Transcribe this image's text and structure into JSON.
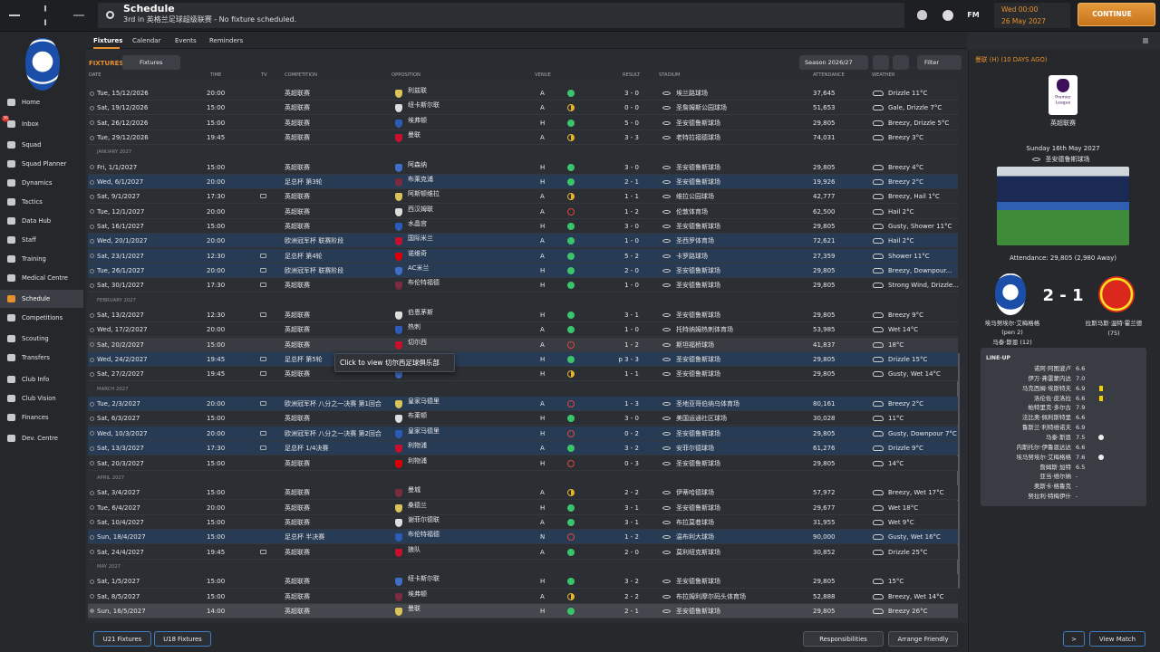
{
  "topbar": {
    "title": "Schedule",
    "subtitle": "3rd in 英格兰足球超级联赛 - No fixture scheduled.",
    "game_logo": "FM",
    "time": "Wed 00:00",
    "date": "26 May 2027",
    "continue": "CONTINUE"
  },
  "sidebar": {
    "active": 10,
    "items": [
      {
        "label": "Home"
      },
      {
        "label": "Inbox",
        "badge": "36"
      },
      {
        "label": "Squad"
      },
      {
        "label": "Squad Planner"
      },
      {
        "label": "Dynamics"
      },
      {
        "label": "Tactics"
      },
      {
        "label": "Data Hub"
      },
      {
        "label": "Staff"
      },
      {
        "label": "Training"
      },
      {
        "label": "Medical Centre"
      },
      {
        "label": "Schedule"
      },
      {
        "label": "Competitions"
      },
      {
        "label": "Scouting"
      },
      {
        "label": "Transfers"
      },
      {
        "label": "Club Info"
      },
      {
        "label": "Club Vision"
      },
      {
        "label": "Finances"
      },
      {
        "label": "Dev. Centre"
      }
    ]
  },
  "tabs": {
    "active": 0,
    "items": [
      "Fixtures",
      "Calendar",
      "Events",
      "Reminders"
    ]
  },
  "toolbar": {
    "section": "FIXTURES",
    "view": "Fixtures",
    "season": "Season 2026/27",
    "filter": "Filter"
  },
  "table": {
    "columns": [
      "DATE",
      "TIME",
      "TV",
      "COMPETITION",
      "OPPOSITION",
      "VENUE",
      "RESULT",
      "STADIUM",
      "ATTENDANCE",
      "WEATHER"
    ],
    "rows": [
      {
        "date": "Tue, 15/12/2026",
        "time": "20:00",
        "competition": "英超联赛",
        "opposition": "利兹联",
        "venue": "A",
        "outcome": "W",
        "result": "3 - 0",
        "stadium": "埃兰路球场",
        "attendance": "37,645",
        "weather": "Drizzle 11°C"
      },
      {
        "date": "Sat, 19/12/2026",
        "time": "15:00",
        "competition": "英超联赛",
        "opposition": "纽卡斯尔联",
        "venue": "A",
        "outcome": "D",
        "result": "0 - 0",
        "stadium": "圣詹姆斯公园球场",
        "attendance": "51,653",
        "weather": "Gale, Drizzle 7°C"
      },
      {
        "date": "Sat, 26/12/2026",
        "time": "15:00",
        "competition": "英超联赛",
        "opposition": "埃弗顿",
        "venue": "H",
        "outcome": "W",
        "result": "5 - 0",
        "stadium": "圣安德鲁斯球场",
        "attendance": "29,805",
        "weather": "Breezy, Drizzle 5°C"
      },
      {
        "date": "Tue, 29/12/2026",
        "time": "19:45",
        "competition": "英超联赛",
        "opposition": "曼联",
        "venue": "A",
        "outcome": "D",
        "result": "3 - 3",
        "stadium": "老特拉福德球场",
        "attendance": "74,031",
        "weather": "Breezy 3°C"
      },
      {
        "month": "JANUARY 2027"
      },
      {
        "date": "Fri, 1/1/2027",
        "time": "15:00",
        "competition": "英超联赛",
        "opposition": "阿森纳",
        "venue": "H",
        "outcome": "W",
        "result": "3 - 0",
        "stadium": "圣安德鲁斯球场",
        "attendance": "29,805",
        "weather": "Breezy 4°C"
      },
      {
        "date": "Wed, 6/1/2027",
        "time": "20:00",
        "competition": "足总杯 第3轮",
        "opposition": "布莱克浦",
        "venue": "H",
        "outcome": "W",
        "result": "2 - 1",
        "stadium": "圣安德鲁斯球场",
        "attendance": "19,926",
        "weather": "Breezy 2°C",
        "highlight": true
      },
      {
        "date": "Sat, 9/1/2027",
        "time": "17:30",
        "tv": true,
        "competition": "英超联赛",
        "opposition": "阿斯顿维拉",
        "venue": "A",
        "outcome": "D",
        "result": "1 - 1",
        "stadium": "维拉公园球场",
        "attendance": "42,777",
        "weather": "Breezy, Hail 1°C"
      },
      {
        "date": "Tue, 12/1/2027",
        "time": "20:00",
        "competition": "英超联赛",
        "opposition": "西汉姆联",
        "venue": "A",
        "outcome": "L",
        "result": "1 - 2",
        "stadium": "伦敦体育场",
        "attendance": "62,500",
        "weather": "Hail 2°C"
      },
      {
        "date": "Sat, 16/1/2027",
        "time": "15:00",
        "competition": "英超联赛",
        "opposition": "水晶宫",
        "venue": "H",
        "outcome": "W",
        "result": "3 - 0",
        "stadium": "圣安德鲁斯球场",
        "attendance": "29,805",
        "weather": "Gusty, Shower 11°C"
      },
      {
        "date": "Wed, 20/1/2027",
        "time": "20:00",
        "competition": "欧洲冠军杯 联赛阶段",
        "opposition": "国际米兰",
        "venue": "A",
        "outcome": "W",
        "result": "1 - 0",
        "stadium": "圣西罗体育场",
        "attendance": "72,621",
        "weather": "Hail 2°C",
        "highlight": true
      },
      {
        "date": "Sat, 23/1/2027",
        "time": "12:30",
        "tv": true,
        "competition": "足总杯 第4轮",
        "opposition": "诺维奇",
        "venue": "A",
        "outcome": "W",
        "result": "5 - 2",
        "stadium": "卡罗路球场",
        "attendance": "27,359",
        "weather": "Shower 11°C",
        "highlight": true
      },
      {
        "date": "Tue, 26/1/2027",
        "time": "20:00",
        "tv": true,
        "competition": "欧洲冠军杯 联赛阶段",
        "opposition": "AC米兰",
        "venue": "H",
        "outcome": "W",
        "result": "2 - 0",
        "stadium": "圣安德鲁斯球场",
        "attendance": "29,805",
        "weather": "Breezy, Downpour...",
        "highlight": true
      },
      {
        "date": "Sat, 30/1/2027",
        "time": "17:30",
        "tv": true,
        "competition": "英超联赛",
        "opposition": "布伦特福德",
        "venue": "H",
        "outcome": "W",
        "result": "1 - 0",
        "stadium": "圣安德鲁斯球场",
        "attendance": "29,805",
        "weather": "Strong Wind, Drizzle..."
      },
      {
        "month": "FEBRUARY 2027"
      },
      {
        "date": "Sat, 13/2/2027",
        "time": "12:30",
        "tv": true,
        "competition": "英超联赛",
        "opposition": "伯恩茅斯",
        "venue": "H",
        "outcome": "W",
        "result": "3 - 1",
        "stadium": "圣安德鲁斯球场",
        "attendance": "29,805",
        "weather": "Breezy 9°C"
      },
      {
        "date": "Wed, 17/2/2027",
        "time": "20:00",
        "competition": "英超联赛",
        "opposition": "热刺",
        "venue": "A",
        "outcome": "W",
        "result": "1 - 0",
        "stadium": "托特纳姆热刺体育场",
        "attendance": "53,985",
        "weather": "Wet 14°C"
      },
      {
        "date": "Sat, 20/2/2027",
        "time": "15:00",
        "competition": "英超联赛",
        "opposition": "切尔西",
        "venue": "A",
        "outcome": "L",
        "result": "1 - 2",
        "stadium": "斯坦福桥球场",
        "attendance": "41,837",
        "weather": "18°C",
        "hover": true
      },
      {
        "date": "Wed, 24/2/2027",
        "time": "19:45",
        "tv": true,
        "competition": "足总杯 第5轮",
        "venue": "H",
        "outcome": "W",
        "result": "p 3 - 3",
        "stadium": "圣安德鲁斯球场",
        "attendance": "29,805",
        "weather": "Drizzle 15°C",
        "highlight": true
      },
      {
        "date": "Sat, 27/2/2027",
        "time": "19:45",
        "tv": true,
        "competition": "英超联赛",
        "venue": "H",
        "outcome": "D",
        "result": "1 - 1",
        "stadium": "圣安德鲁斯球场",
        "attendance": "29,805",
        "weather": "Gusty, Wet 14°C"
      },
      {
        "month": "MARCH 2027"
      },
      {
        "date": "Tue, 2/3/2027",
        "time": "20:00",
        "tv": true,
        "competition": "欧洲冠军杯 八分之一决赛 第1回合",
        "opposition": "皇家马德里",
        "venue": "A",
        "outcome": "L",
        "result": "1 - 3",
        "stadium": "圣地亚哥伯纳乌体育场",
        "attendance": "80,161",
        "weather": "Breezy 2°C",
        "highlight": true
      },
      {
        "date": "Sat, 6/3/2027",
        "time": "15:00",
        "competition": "英超联赛",
        "opposition": "布莱顿",
        "venue": "H",
        "outcome": "W",
        "result": "3 - 0",
        "stadium": "美国运通社区球场",
        "attendance": "30,028",
        "weather": "11°C"
      },
      {
        "date": "Wed, 10/3/2027",
        "time": "20:00",
        "tv": true,
        "competition": "欧洲冠军杯 八分之一决赛 第2回合",
        "opposition": "皇家马德里",
        "venue": "H",
        "outcome": "L",
        "result": "0 - 2",
        "stadium": "圣安德鲁斯球场",
        "attendance": "29,805",
        "weather": "Gusty, Downpour 7°C",
        "highlight": true
      },
      {
        "date": "Sat, 13/3/2027",
        "time": "17:30",
        "tv": true,
        "competition": "足总杯 1/4决赛",
        "opposition": "利物浦",
        "venue": "A",
        "outcome": "W",
        "result": "3 - 2",
        "stadium": "安菲尔德球场",
        "attendance": "61,276",
        "weather": "Drizzle 9°C",
        "highlight": true
      },
      {
        "date": "Sat, 20/3/2027",
        "time": "15:00",
        "competition": "英超联赛",
        "opposition": "利物浦",
        "venue": "H",
        "outcome": "L",
        "result": "0 - 3",
        "stadium": "圣安德鲁斯球场",
        "attendance": "29,805",
        "weather": "14°C"
      },
      {
        "month": "APRIL 2027"
      },
      {
        "date": "Sat, 3/4/2027",
        "time": "15:00",
        "competition": "英超联赛",
        "opposition": "曼城",
        "venue": "A",
        "outcome": "D",
        "result": "2 - 2",
        "stadium": "伊蒂哈德球场",
        "attendance": "57,972",
        "weather": "Breezy, Wet 17°C"
      },
      {
        "date": "Tue, 6/4/2027",
        "time": "20:00",
        "competition": "英超联赛",
        "opposition": "桑德兰",
        "venue": "H",
        "outcome": "W",
        "result": "3 - 1",
        "stadium": "圣安德鲁斯球场",
        "attendance": "29,677",
        "weather": "Wet 18°C"
      },
      {
        "date": "Sat, 10/4/2027",
        "time": "15:00",
        "competition": "英超联赛",
        "opposition": "谢菲尔德联",
        "venue": "A",
        "outcome": "W",
        "result": "3 - 1",
        "stadium": "布拉莫巷球场",
        "attendance": "31,955",
        "weather": "Wet 9°C"
      },
      {
        "date": "Sun, 18/4/2027",
        "time": "15:00",
        "competition": "足总杯 半决赛",
        "opposition": "布伦特福德",
        "venue": "N",
        "outcome": "L",
        "result": "1 - 2",
        "stadium": "温布利大球场",
        "attendance": "90,000",
        "weather": "Gusty, Wet 16°C",
        "highlight": true
      },
      {
        "date": "Sat, 24/4/2027",
        "time": "19:45",
        "tv": true,
        "competition": "英超联赛",
        "opposition": "狼队",
        "venue": "A",
        "outcome": "W",
        "result": "2 - 0",
        "stadium": "莫利纽克斯球场",
        "attendance": "30,852",
        "weather": "Drizzle 25°C"
      },
      {
        "month": "MAY 2027"
      },
      {
        "date": "Sat, 1/5/2027",
        "time": "15:00",
        "competition": "英超联赛",
        "opposition": "纽卡斯尔联",
        "venue": "H",
        "outcome": "W",
        "result": "3 - 2",
        "stadium": "圣安德鲁斯球场",
        "attendance": "29,805",
        "weather": "15°C"
      },
      {
        "date": "Sat, 8/5/2027",
        "time": "15:00",
        "competition": "英超联赛",
        "opposition": "埃弗顿",
        "venue": "A",
        "outcome": "D",
        "result": "2 - 2",
        "stadium": "布拉姆利摩尔码头体育场",
        "attendance": "52,888",
        "weather": "Breezy, Wet 14°C"
      },
      {
        "date": "Sun, 16/5/2027",
        "time": "14:00",
        "competition": "英超联赛",
        "opposition": "曼联",
        "venue": "H",
        "outcome": "W",
        "result": "2 - 1",
        "stadium": "圣安德鲁斯球场",
        "attendance": "29,805",
        "weather": "Breezy 26°C",
        "selected": true
      }
    ]
  },
  "tooltip": "Click to view 切尔西足球俱乐部",
  "footer": {
    "left": [
      "U21 Fixtures",
      "U18 Fixtures"
    ],
    "right": [
      "Responsibilities",
      "Arrange Friendly"
    ]
  },
  "match": {
    "heading": "曼联 (H) (10 DAYS AGO)",
    "league_logo": [
      "Premier",
      "League"
    ],
    "competition": "英超联赛",
    "date": "Sunday 16th May 2027",
    "stadium": "圣安德鲁斯球场",
    "attendance": "Attendance: 29,805 (2,980 Away)",
    "score": "2 - 1",
    "home_scorers": [
      "埃马努埃尔·艾梅格格",
      "(pen 2)",
      "马泰·斯恩 (12)"
    ],
    "away_scorers": [
      "拉斯马斯·温特·霍兰德",
      "(75)"
    ],
    "lineup_title": "LINE-UP",
    "lineup": [
      {
        "name": "诺阿·阿图波卢",
        "rating": "6.6"
      },
      {
        "name": "伊万·弗雷蒙内达",
        "rating": "7.0"
      },
      {
        "name": "马克西姆·埃斯特夫",
        "rating": "6.9",
        "event": "yellow"
      },
      {
        "name": "洛伦佐·皮洛拉",
        "rating": "6.6",
        "event": "yellow"
      },
      {
        "name": "帕特里克·多尔古",
        "rating": "7.9"
      },
      {
        "name": "法比奥·佩利斯特里",
        "rating": "6.6"
      },
      {
        "name": "鲁斯兰·利特维诺夫",
        "rating": "6.9"
      },
      {
        "name": "马泰·斯恩",
        "rating": "7.5",
        "event": "goal"
      },
      {
        "name": "内斯托尔·伊鲁恩达达",
        "rating": "6.6"
      },
      {
        "name": "埃马努埃尔·艾梅格格",
        "rating": "7.6",
        "event": "goal"
      },
      {
        "name": "詹姆斯·加特",
        "rating": "6.5"
      },
      {
        "name": "亚当·维尔纳",
        "rating": "-"
      },
      {
        "name": "奥斯卡·格鲁克",
        "rating": "-"
      },
      {
        "name": "努拉利·特梅伊什",
        "rating": "-"
      }
    ],
    "buttons": [
      ">",
      "View Match"
    ]
  }
}
